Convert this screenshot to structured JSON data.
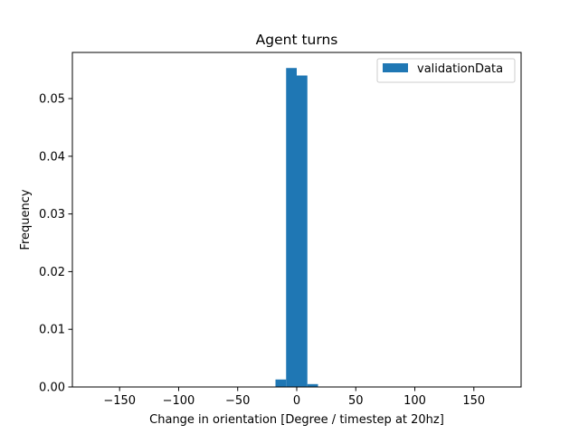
{
  "chart_data": {
    "type": "bar",
    "title": "Agent turns",
    "xlabel": "Change in orientation [Degree / timestep at 20hz]",
    "ylabel": "Frequency",
    "xlim": [
      -190,
      190
    ],
    "ylim": [
      0.0,
      0.058
    ],
    "xticks": [
      -150,
      -100,
      -50,
      0,
      50,
      100,
      150
    ],
    "xtick_labels": [
      "−150",
      "−100",
      "−50",
      "0",
      "50",
      "100",
      "150"
    ],
    "yticks": [
      0.0,
      0.01,
      0.02,
      0.03,
      0.04,
      0.05
    ],
    "ytick_labels": [
      "0.00",
      "0.01",
      "0.02",
      "0.03",
      "0.04",
      "0.05"
    ],
    "grid": false,
    "legend_position": "top-right",
    "series": [
      {
        "name": "validationData",
        "color": "#1f77b4",
        "bins": [
          {
            "x0": -18,
            "x1": -9,
            "value": 0.0013
          },
          {
            "x0": -9,
            "x1": 0,
            "value": 0.0553
          },
          {
            "x0": 0,
            "x1": 9,
            "value": 0.054
          },
          {
            "x0": 9,
            "x1": 18,
            "value": 0.0005
          }
        ]
      }
    ]
  }
}
